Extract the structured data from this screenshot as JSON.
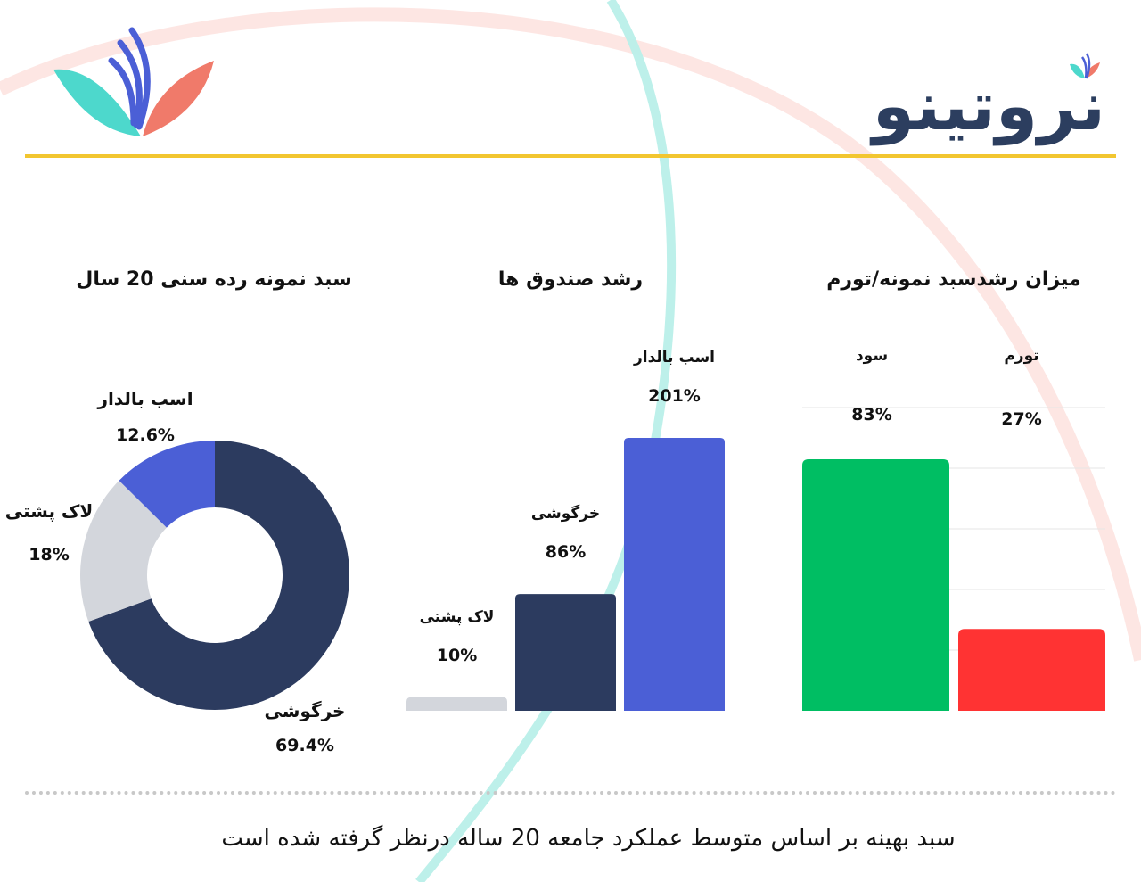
{
  "brand": {
    "name": "نروتینو",
    "colors": {
      "navy": "#2c3e5f",
      "teal": "#4dd8cc",
      "blue": "#4b5fd6",
      "coral": "#f07a6a",
      "gold": "#f2c630"
    }
  },
  "footer": {
    "note": "سبد بهینه بر اساس متوسط عملکرد جامعه 20 ساله درنظر گرفته شده است"
  },
  "chart_data": [
    {
      "type": "pie",
      "title": "سبد نمونه رده سنی 20 سال",
      "series": [
        {
          "name": "خرگوشی",
          "value": 69.4,
          "label": "69.4%",
          "color": "#2c3b5f"
        },
        {
          "name": "لاک پشتی",
          "value": 18,
          "label": "18%",
          "color": "#d3d6dc"
        },
        {
          "name": "اسب بالدار",
          "value": 12.6,
          "label": "12.6%",
          "color": "#4b5fd6"
        }
      ]
    },
    {
      "type": "bar",
      "title": "رشد صندوق ها",
      "categories": [
        "لاک پشتی",
        "خرگوشی",
        "اسب بالدار"
      ],
      "values": [
        10,
        86,
        201
      ],
      "labels": [
        "10%",
        "86%",
        "201%"
      ],
      "colors": [
        "#d3d6dc",
        "#2c3b5f",
        "#4b5fd6"
      ],
      "ylim": [
        0,
        201
      ]
    },
    {
      "type": "bar",
      "title": "میزان رشدسبد نمونه/تورم",
      "categories": [
        "سود",
        "تورم"
      ],
      "values": [
        83,
        27
      ],
      "labels": [
        "83%",
        "27%"
      ],
      "colors": [
        "#00be63",
        "#ff3333"
      ],
      "ylim": [
        0,
        83
      ],
      "grid": true
    }
  ]
}
